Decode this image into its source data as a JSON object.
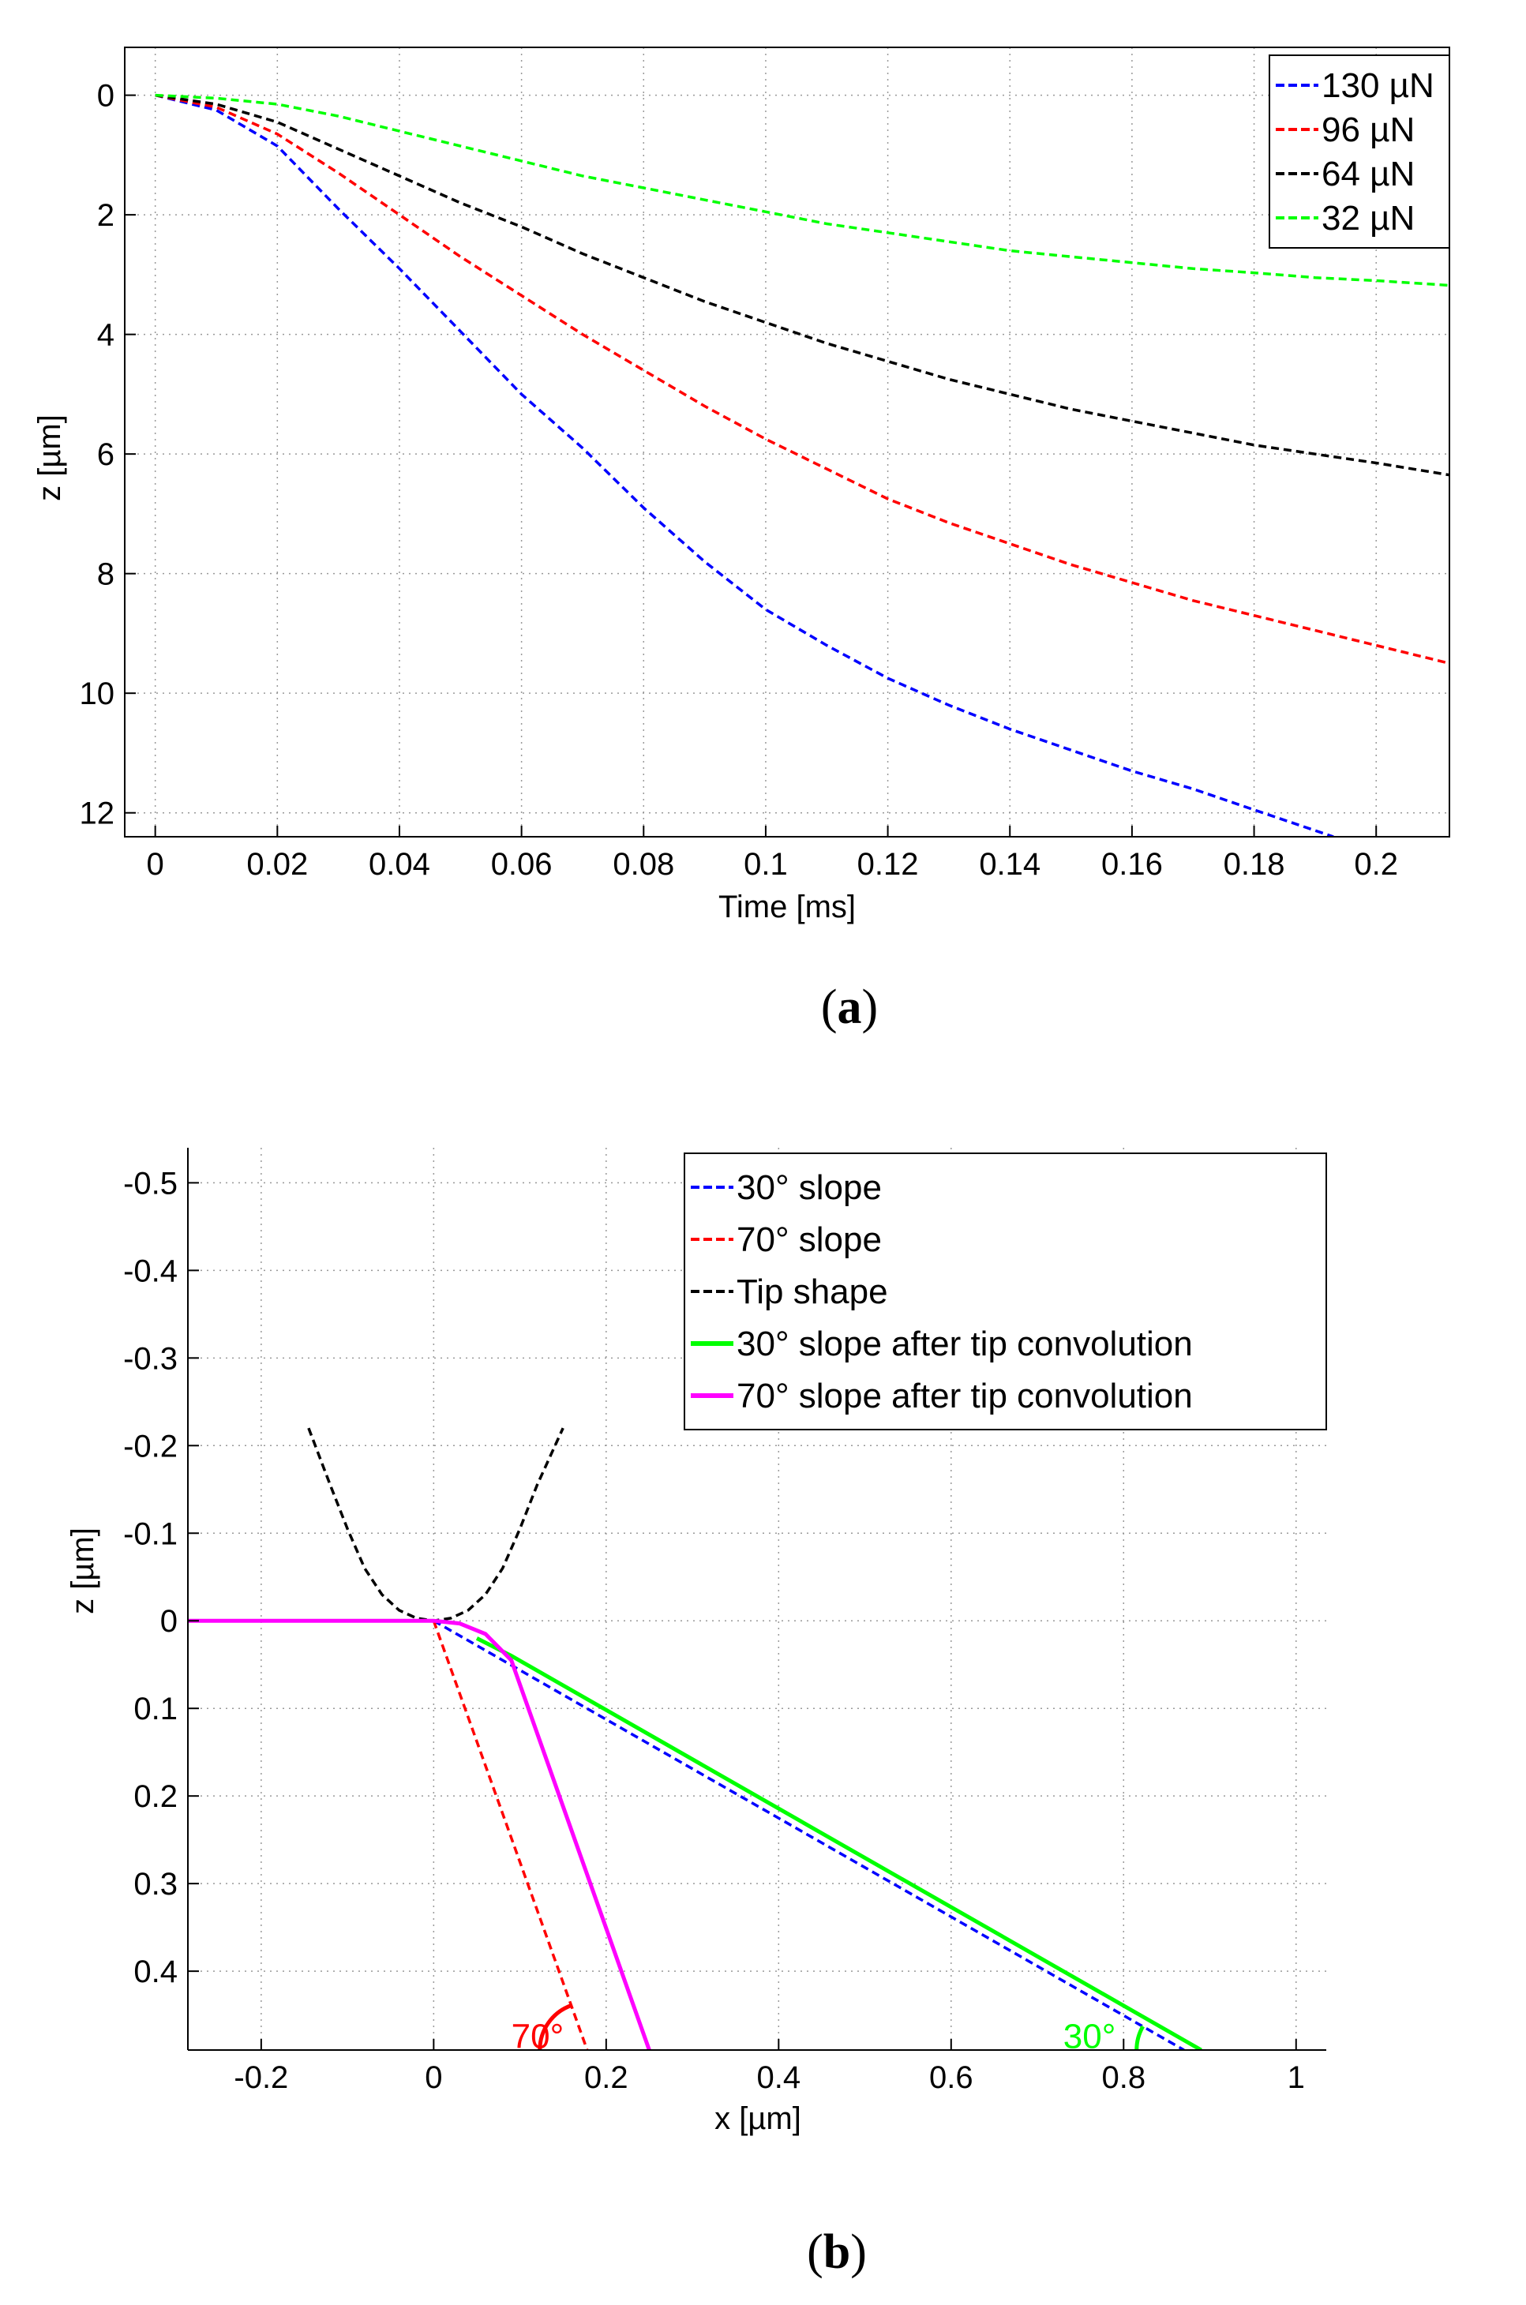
{
  "chart_data": [
    {
      "type": "line",
      "caption_letter": "a",
      "xlabel": "Time [ms]",
      "ylabel": "z [µm]",
      "xlim": [
        -0.005,
        0.212
      ],
      "ylim": [
        12.4,
        -0.8
      ],
      "y_inverted": true,
      "grid": true,
      "legend_position": "top-right",
      "xticks": [
        0,
        0.02,
        0.04,
        0.06,
        0.08,
        0.1,
        0.12,
        0.14,
        0.16,
        0.18,
        0.2
      ],
      "xtick_labels": [
        "0",
        "0.02",
        "0.04",
        "0.06",
        "0.08",
        "0.1",
        "0.12",
        "0.14",
        "0.16",
        "0.18",
        "0.2"
      ],
      "yticks": [
        0,
        2,
        4,
        6,
        8,
        10,
        12
      ],
      "ytick_labels": [
        "0",
        "2",
        "4",
        "6",
        "8",
        "10",
        "12"
      ],
      "series": [
        {
          "name": "130 µN",
          "color": "#0000ff",
          "style": "dashed",
          "x": [
            0,
            0.01,
            0.02,
            0.03,
            0.04,
            0.05,
            0.06,
            0.07,
            0.08,
            0.09,
            0.1,
            0.11,
            0.12,
            0.13,
            0.14,
            0.15,
            0.16,
            0.17,
            0.18,
            0.193
          ],
          "y": [
            0,
            0.25,
            0.85,
            1.9,
            2.9,
            3.95,
            5.0,
            5.9,
            6.9,
            7.8,
            8.6,
            9.2,
            9.75,
            10.2,
            10.6,
            10.95,
            11.3,
            11.6,
            11.95,
            12.4
          ]
        },
        {
          "name": "96 µN",
          "color": "#ff0000",
          "style": "dashed",
          "x": [
            0,
            0.01,
            0.02,
            0.03,
            0.04,
            0.05,
            0.06,
            0.07,
            0.08,
            0.09,
            0.1,
            0.11,
            0.12,
            0.13,
            0.14,
            0.15,
            0.16,
            0.17,
            0.18,
            0.19,
            0.2,
            0.212
          ],
          "y": [
            0,
            0.2,
            0.65,
            1.3,
            2.0,
            2.7,
            3.35,
            4.0,
            4.6,
            5.2,
            5.75,
            6.25,
            6.75,
            7.15,
            7.5,
            7.85,
            8.15,
            8.45,
            8.7,
            8.95,
            9.2,
            9.5
          ]
        },
        {
          "name": "64 µN",
          "color": "#000000",
          "style": "dashed",
          "x": [
            0,
            0.01,
            0.02,
            0.03,
            0.04,
            0.05,
            0.06,
            0.07,
            0.08,
            0.09,
            0.1,
            0.11,
            0.12,
            0.13,
            0.14,
            0.15,
            0.16,
            0.17,
            0.18,
            0.19,
            0.2,
            0.212
          ],
          "y": [
            0,
            0.15,
            0.45,
            0.9,
            1.35,
            1.8,
            2.2,
            2.65,
            3.05,
            3.45,
            3.8,
            4.15,
            4.45,
            4.75,
            5.0,
            5.25,
            5.45,
            5.65,
            5.85,
            6.0,
            6.15,
            6.35
          ]
        },
        {
          "name": "32 µN",
          "color": "#00ff00",
          "style": "dashed",
          "x": [
            0,
            0.01,
            0.02,
            0.03,
            0.04,
            0.05,
            0.06,
            0.07,
            0.08,
            0.09,
            0.1,
            0.11,
            0.12,
            0.13,
            0.14,
            0.15,
            0.16,
            0.17,
            0.18,
            0.19,
            0.2,
            0.212
          ],
          "y": [
            0,
            0.05,
            0.15,
            0.35,
            0.6,
            0.85,
            1.1,
            1.35,
            1.55,
            1.75,
            1.95,
            2.15,
            2.3,
            2.45,
            2.6,
            2.7,
            2.8,
            2.9,
            2.97,
            3.05,
            3.1,
            3.18
          ]
        }
      ]
    },
    {
      "type": "line",
      "caption_letter": "b",
      "xlabel": "x [µm]",
      "ylabel": "z [µm]",
      "xlim": [
        -0.285,
        1.035
      ],
      "ylim": [
        0.49,
        -0.54
      ],
      "y_inverted": true,
      "grid": true,
      "legend_position": "top-right",
      "xticks": [
        -0.2,
        0,
        0.2,
        0.4,
        0.6,
        0.8,
        1
      ],
      "xtick_labels": [
        "-0.2",
        "0",
        "0.2",
        "0.4",
        "0.6",
        "0.8",
        "1"
      ],
      "yticks": [
        -0.5,
        -0.4,
        -0.3,
        -0.2,
        -0.1,
        0,
        0.1,
        0.2,
        0.3,
        0.4
      ],
      "ytick_labels": [
        "-0.5",
        "-0.4",
        "-0.3",
        "-0.2",
        "-0.1",
        "0",
        "0.1",
        "0.2",
        "0.3",
        "0.4"
      ],
      "series": [
        {
          "name": "30° slope",
          "color": "#0000ff",
          "style": "dashed",
          "x": [
            0,
            0.87
          ],
          "y": [
            0,
            0.49
          ]
        },
        {
          "name": "70° slope",
          "color": "#ff0000",
          "style": "dashed",
          "x": [
            0,
            0.178
          ],
          "y": [
            0,
            0.49
          ]
        },
        {
          "name": "Tip shape",
          "color": "#000000",
          "style": "dashed",
          "x": [
            -0.145,
            -0.12,
            -0.1,
            -0.08,
            -0.06,
            -0.04,
            -0.02,
            0,
            0.02,
            0.04,
            0.06,
            0.08,
            0.1,
            0.12,
            0.15
          ],
          "y": [
            -0.22,
            -0.155,
            -0.105,
            -0.06,
            -0.03,
            -0.012,
            -0.003,
            0,
            -0.003,
            -0.012,
            -0.03,
            -0.06,
            -0.105,
            -0.155,
            -0.22
          ]
        },
        {
          "name": "30° slope after tip convolution",
          "color": "#00ff00",
          "style": "solid",
          "x": [
            0.05,
            0.09,
            0.89
          ],
          "y": [
            0.02,
            0.04,
            0.49
          ]
        },
        {
          "name": "70° slope after tip convolution",
          "color": "#ff00ff",
          "style": "solid",
          "x": [
            -0.285,
            0,
            0.03,
            0.06,
            0.09,
            0.25
          ],
          "y": [
            0,
            0,
            0.003,
            0.015,
            0.045,
            0.49
          ]
        }
      ],
      "annotations": [
        {
          "text": "70°",
          "color": "#ff0000",
          "x": 0.09,
          "y": 0.475
        },
        {
          "text": "30°",
          "color": "#00ff00",
          "x": 0.73,
          "y": 0.475
        }
      ]
    }
  ]
}
